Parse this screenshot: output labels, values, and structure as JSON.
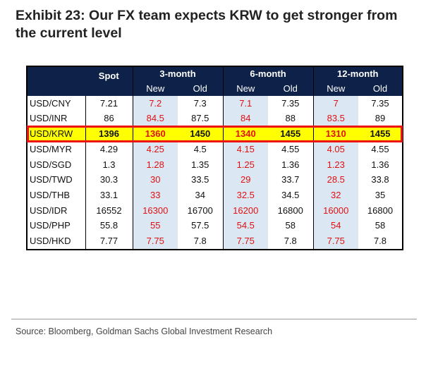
{
  "title": "Exhibit 23: Our FX team expects KRW to get stronger from the current level",
  "header": {
    "spot": "Spot",
    "groups": [
      "3-month",
      "6-month",
      "12-month"
    ],
    "sub": [
      "New",
      "Old",
      "New",
      "Old",
      "New",
      "Old"
    ]
  },
  "source": "Source: Bloomberg, Goldman Sachs Global Investment Research",
  "colors": {
    "header_bg": "#0d2149",
    "new_col_bg": "#dbe8f4",
    "new_text": "#e01010",
    "highlight": "#ffff00",
    "highlight_border": "#ee1111"
  },
  "chart_data": {
    "type": "table",
    "title": "Exhibit 23: Our FX team expects KRW to get stronger from the current level",
    "columns": [
      "",
      "Spot",
      "3-month New",
      "3-month Old",
      "6-month New",
      "6-month Old",
      "12-month New",
      "12-month Old"
    ],
    "highlighted_row": "USD/KRW",
    "rows": [
      {
        "pair": "USD/CNY",
        "cells": [
          "7.21",
          "7.2",
          "7.3",
          "7.1",
          "7.35",
          "7",
          "7.35"
        ]
      },
      {
        "pair": "USD/INR",
        "cells": [
          "86",
          "84.5",
          "87.5",
          "84",
          "88",
          "83.5",
          "89"
        ]
      },
      {
        "pair": "USD/KRW",
        "cells": [
          "1396",
          "1360",
          "1450",
          "1340",
          "1455",
          "1310",
          "1455"
        ]
      },
      {
        "pair": "USD/MYR",
        "cells": [
          "4.29",
          "4.25",
          "4.5",
          "4.15",
          "4.55",
          "4.05",
          "4.55"
        ]
      },
      {
        "pair": "USD/SGD",
        "cells": [
          "1.3",
          "1.28",
          "1.35",
          "1.25",
          "1.36",
          "1.23",
          "1.36"
        ]
      },
      {
        "pair": "USD/TWD",
        "cells": [
          "30.3",
          "30",
          "33.5",
          "29",
          "33.7",
          "28.5",
          "33.8"
        ]
      },
      {
        "pair": "USD/THB",
        "cells": [
          "33.1",
          "33",
          "34",
          "32.5",
          "34.5",
          "32",
          "35"
        ]
      },
      {
        "pair": "USD/IDR",
        "cells": [
          "16552",
          "16300",
          "16700",
          "16200",
          "16800",
          "16000",
          "16800"
        ]
      },
      {
        "pair": "USD/PHP",
        "cells": [
          "55.8",
          "55",
          "57.5",
          "54.5",
          "58",
          "54",
          "58"
        ]
      },
      {
        "pair": "USD/HKD",
        "cells": [
          "7.77",
          "7.75",
          "7.8",
          "7.75",
          "7.8",
          "7.75",
          "7.8"
        ]
      }
    ]
  }
}
